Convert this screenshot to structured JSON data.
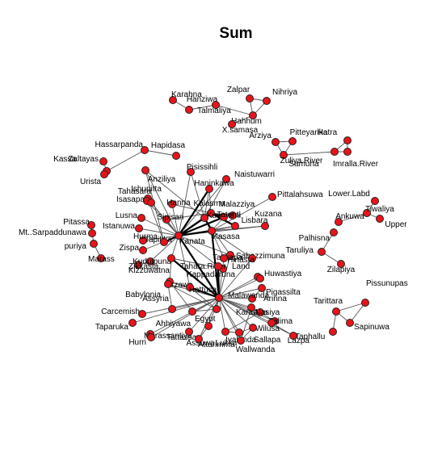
{
  "title": "Sum",
  "colors": {
    "node_fill": "#e8141b",
    "node_stroke": "#222222",
    "edge": "#555555",
    "edge_strong": "#000000"
  },
  "nodes": [
    {
      "id": "Karahna",
      "label": "Karahna"
    },
    {
      "id": "Hanziwa",
      "label": "Hanziwa"
    },
    {
      "id": "Talmaliya",
      "label": "Talmaliya"
    },
    {
      "id": "Zalpar",
      "label": "Zalpar"
    },
    {
      "id": "Nihriya",
      "label": "Nihriya"
    },
    {
      "id": "Hahhum",
      "label": "Hahhum"
    },
    {
      "id": "X.samasa",
      "label": "X.samasa"
    },
    {
      "id": "Arziya",
      "label": "Arziya"
    },
    {
      "id": "Pitteyarika",
      "label": "Pitteyarika"
    },
    {
      "id": "Hatra",
      "label": "Hatra"
    },
    {
      "id": "Zuliya.River",
      "label": "Zuliya.River"
    },
    {
      "id": "Samuha",
      "label": "Samuha"
    },
    {
      "id": "Imrala.River",
      "label": "Imralla.River"
    },
    {
      "id": "Hassarpanda",
      "label": "Hassarpanda"
    },
    {
      "id": "Hapidasa",
      "label": "Hapidasa"
    },
    {
      "id": "Kassa",
      "label": "Kassa"
    },
    {
      "id": "Zaltayas",
      "label": "Zaltayas"
    },
    {
      "id": "Urista",
      "label": "Urista"
    },
    {
      "id": "Anziliya",
      "label": "Anziliya"
    },
    {
      "id": "Pisissihli",
      "label": "Pisissihli"
    },
    {
      "id": "Naistuwarri",
      "label": "Naistuwarri"
    },
    {
      "id": "Ishupitta",
      "label": "Ishupitta"
    },
    {
      "id": "Haninkawa",
      "label": "Haninkawa"
    },
    {
      "id": "Tahasara",
      "label": "Tahasara"
    },
    {
      "id": "Isasapa",
      "label": "Isasapa"
    },
    {
      "id": "Hanna",
      "label": "Hanna"
    },
    {
      "id": "Kalasma",
      "label": "Kalasma"
    },
    {
      "id": "Malazziya",
      "label": "Malazziya"
    },
    {
      "id": "Pittalahsuwa",
      "label": "Pittalahsuwa"
    },
    {
      "id": "Lower.Land",
      "label": "Lower.Labd"
    },
    {
      "id": "Sipisari",
      "label": "Sipisari"
    },
    {
      "id": "Kummeni",
      "label": "Kummeni"
    },
    {
      "id": "Tatenti",
      "label": "Tatenti"
    },
    {
      "id": "Lisbara",
      "label": "Lisbara"
    },
    {
      "id": "Kuzana",
      "label": "Kuzana"
    },
    {
      "id": "Tiwaliya",
      "label": "Tiwaliya"
    },
    {
      "id": "Ankuwa",
      "label": "Ankuwa"
    },
    {
      "id": "Upper",
      "label": "Upper"
    },
    {
      "id": "Pitassa",
      "label": "Pitassa"
    },
    {
      "id": "Lusna",
      "label": "Lusna"
    },
    {
      "id": "Istanuwa",
      "label": "Istanuwa"
    },
    {
      "id": "Mt.Sarpaduwana",
      "label": "Mt..Sarpaddunawa"
    },
    {
      "id": "Tapikka",
      "label": "Tapikka"
    },
    {
      "id": "Kasasa",
      "label": "Kasasa"
    },
    {
      "id": "Palhisna",
      "label": "Palhisna"
    },
    {
      "id": "Puriya",
      "label": "puriya"
    },
    {
      "id": "Zispa",
      "label": "Zispa"
    },
    {
      "id": "Hurma",
      "label": "Hurma"
    },
    {
      "id": "Nerik",
      "label": "Kanata"
    },
    {
      "id": "Taruliya",
      "label": "Taruliya"
    },
    {
      "id": "Maraas",
      "label": "Marass"
    },
    {
      "id": "Zikkasta",
      "label": "Zikkasta"
    },
    {
      "id": "Kuduipuna",
      "label": "Kuduipuna"
    },
    {
      "id": "Zilapiya",
      "label": "Zilapiya"
    },
    {
      "id": "Takkapa",
      "label": "Takkapa"
    },
    {
      "id": "Sabazzimuna",
      "label": "Sabazzimuna"
    },
    {
      "id": "Kizzuwatna",
      "label": "Kizzuwatna"
    },
    {
      "id": "Tahara",
      "label": "Tahara.River"
    },
    {
      "id": "Land",
      "label": "Land"
    },
    {
      "id": "Hinasta",
      "label": "Hinasta"
    },
    {
      "id": "Kappadaruna",
      "label": "Kappadaruna"
    },
    {
      "id": "Huwasi",
      "label": "Huwastiya"
    },
    {
      "id": "Arzawa",
      "label": "Arzawa"
    },
    {
      "id": "Babylonia",
      "label": "Babylonia"
    },
    {
      "id": "Hattusa",
      "label": "Hattusa"
    },
    {
      "id": "Pigassilta",
      "label": "Pigassilta"
    },
    {
      "id": "Arinna",
      "label": "Arinna"
    },
    {
      "id": "Assyria",
      "label": "Assyria"
    },
    {
      "id": "Carcemish",
      "label": "Carcemish"
    },
    {
      "id": "Malawanda",
      "label": "Malawanda"
    },
    {
      "id": "Tarittara",
      "label": "Tarittara"
    },
    {
      "id": "Pissunupassa",
      "label": "Pissunupas"
    },
    {
      "id": "Taparuka",
      "label": "Taparuka"
    },
    {
      "id": "Ahhiyawa",
      "label": "Ahhiyawa"
    },
    {
      "id": "Egypt",
      "label": "Egypt"
    },
    {
      "id": "Kannuwara",
      "label": "Karauwa"
    },
    {
      "id": "Alasiya",
      "label": "Alasiya"
    },
    {
      "id": "Zalma",
      "label": "Zalima"
    },
    {
      "id": "Sapinuwa",
      "label": "Sapinuwa"
    },
    {
      "id": "Wiluxa",
      "label": "Wilusa"
    },
    {
      "id": "Massantiya",
      "label": "Marassantiya"
    },
    {
      "id": "Hurri",
      "label": "Hurri"
    },
    {
      "id": "Tattassa",
      "label": "Tattassa"
    },
    {
      "id": "Assuwa",
      "label": "Assuwa"
    },
    {
      "id": "Attarimma",
      "label": "Attarimma"
    },
    {
      "id": "Lukka",
      "label": "Lukka"
    },
    {
      "id": "Iyalanda",
      "label": "Iyalanda"
    },
    {
      "id": "Sallapa",
      "label": "Sallapa"
    },
    {
      "id": "Wallwanda",
      "label": "Wallwanda"
    },
    {
      "id": "Taphallu",
      "label": "Taphallu"
    },
    {
      "id": "Lazpa",
      "label": "Lazpa"
    }
  ],
  "edges": [
    [
      "Karahna",
      "Hanziwa"
    ],
    [
      "Hanziwa",
      "Talmaliya"
    ],
    [
      "Talmaliya",
      "Hahhum"
    ],
    [
      "Hahhum",
      "X.samasa"
    ],
    [
      "Zalpar",
      "Nihriya"
    ],
    [
      "Nihriya",
      "Hahhum"
    ],
    [
      "Zalpar",
      "Hahhum"
    ],
    [
      "Arziya",
      "Pitteyarika"
    ],
    [
      "Arziya",
      "Zuliya.River"
    ],
    [
      "Pitteyarika",
      "Zuliya.River"
    ],
    [
      "Zuliya.River",
      "Samuha"
    ],
    [
      "Samuha",
      "Hatra"
    ],
    [
      "Hatra",
      "Imrala.River"
    ],
    [
      "Samuha",
      "Imrala.River"
    ],
    [
      "Hassarpanda",
      "Hapidasa"
    ],
    [
      "Zaltayas",
      "Hassarpanda"
    ],
    [
      "Kassa",
      "Zaltayas"
    ],
    [
      "Zaltayas",
      "Urista"
    ],
    [
      "Tiwaliya",
      "Lower.Land"
    ],
    [
      "Tiwaliya",
      "Upper"
    ],
    [
      "Ankuwa",
      "Tiwaliya"
    ],
    [
      "Pitassa",
      "Mt.Sarpaduwana"
    ],
    [
      "Mt.Sarpaduwana",
      "Puriya"
    ],
    [
      "Puriya",
      "Maraas"
    ],
    [
      "Palhisna",
      "Taruliya"
    ],
    [
      "Taruliya",
      "Zilapiya"
    ],
    [
      "Tarittara",
      "Pissunupassa"
    ],
    [
      "Tarittara",
      "Sapinuwa"
    ],
    [
      "Sapinuwa",
      "Pissunupassa"
    ],
    [
      "Tarittara",
      "Taphallu"
    ],
    [
      "Anziliya",
      "Nerik"
    ],
    [
      "Pisissihli",
      "Nerik"
    ],
    [
      "Naistuwarri",
      "Nerik"
    ],
    [
      "Haninkawa",
      "Nerik"
    ],
    [
      "Ishupitta",
      "Nerik"
    ],
    [
      "Tahasara",
      "Nerik"
    ],
    [
      "Isasapa",
      "Nerik"
    ],
    [
      "Hanna",
      "Nerik"
    ],
    [
      "Kalasma",
      "Nerik"
    ],
    [
      "Malazziya",
      "Kalasma"
    ],
    [
      "Pittalahsuwa",
      "Kasasa"
    ],
    [
      "Sipisari",
      "Nerik"
    ],
    [
      "Kummeni",
      "Nerik"
    ],
    [
      "Tatenti",
      "Nerik"
    ],
    [
      "Lisbara",
      "Nerik"
    ],
    [
      "Kuzana",
      "Nerik"
    ],
    [
      "Lusna",
      "Nerik"
    ],
    [
      "Istanuwa",
      "Nerik"
    ],
    [
      "Tapikka",
      "Nerik"
    ],
    [
      "Zispa",
      "Nerik"
    ],
    [
      "Hurma",
      "Nerik"
    ],
    [
      "Kuduipuna",
      "Nerik"
    ],
    [
      "Zikkasta",
      "Kuduipuna"
    ],
    [
      "Kasasa",
      "Nerik"
    ],
    [
      "Takkapa",
      "Nerik"
    ],
    [
      "Anziliya",
      "Hurma"
    ],
    [
      "Anziliya",
      "Kummeni"
    ],
    [
      "Haninkawa",
      "Kummeni"
    ],
    [
      "Haninkawa",
      "Kalasma"
    ],
    [
      "Pisissihli",
      "Kummeni"
    ],
    [
      "Naistuwarri",
      "Kummeni"
    ],
    [
      "Kummeni",
      "Kasasa"
    ],
    [
      "Kummeni",
      "Takkapa"
    ],
    [
      "Lisbara",
      "Kasasa"
    ],
    [
      "Tatenti",
      "Kasasa"
    ],
    [
      "Kuzana",
      "Kasasa"
    ],
    [
      "Malazziya",
      "Tatenti"
    ],
    [
      "Sipisari",
      "Kalasma"
    ],
    [
      "Hanna",
      "Kalasma"
    ],
    [
      "Ishupitta",
      "Hurma"
    ],
    [
      "Nerik",
      "Malawanda"
    ],
    [
      "Nerik",
      "Hattusa"
    ],
    [
      "Nerik",
      "Kizzuwatna"
    ],
    [
      "Nerik",
      "Land"
    ],
    [
      "Kasasa",
      "Malawanda"
    ],
    [
      "Takkapa",
      "Malawanda"
    ],
    [
      "Sabazzimuna",
      "Malawanda"
    ],
    [
      "Hinasta",
      "Malawanda"
    ],
    [
      "Land",
      "Malawanda"
    ],
    [
      "Tahara",
      "Land"
    ],
    [
      "Kappadaruna",
      "Malawanda"
    ],
    [
      "Huwasi",
      "Malawanda"
    ],
    [
      "Kizzuwatna",
      "Malawanda"
    ],
    [
      "Kizzuwatna",
      "Arzawa"
    ],
    [
      "Arzawa",
      "Malawanda"
    ],
    [
      "Babylonia",
      "Malawanda"
    ],
    [
      "Hattusa",
      "Malawanda"
    ],
    [
      "Pigassilta",
      "Malawanda"
    ],
    [
      "Arinna",
      "Malawanda"
    ],
    [
      "Assyria",
      "Malawanda"
    ],
    [
      "Carcemish",
      "Malawanda"
    ],
    [
      "Taparuka",
      "Malawanda"
    ],
    [
      "Ahhiyawa",
      "Malawanda"
    ],
    [
      "Egypt",
      "Malawanda"
    ],
    [
      "Kannuwara",
      "Malawanda"
    ],
    [
      "Alasiya",
      "Malawanda"
    ],
    [
      "Zalma",
      "Malawanda"
    ],
    [
      "Wiluxa",
      "Malawanda"
    ],
    [
      "Massantiya",
      "Malawanda"
    ],
    [
      "Hurri",
      "Malawanda"
    ],
    [
      "Tattassa",
      "Malawanda"
    ],
    [
      "Assuwa",
      "Malawanda"
    ],
    [
      "Attarimma",
      "Malawanda"
    ],
    [
      "Lukka",
      "Malawanda"
    ],
    [
      "Iyalanda",
      "Malawanda"
    ],
    [
      "Sallapa",
      "Malawanda"
    ],
    [
      "Wallwanda",
      "Malawanda"
    ],
    [
      "Lazpa",
      "Malawanda"
    ],
    [
      "Babylonia",
      "Assyria"
    ],
    [
      "Babylonia",
      "Egypt"
    ],
    [
      "Arzawa",
      "Ahhiyawa"
    ],
    [
      "Arzawa",
      "Hattusa"
    ],
    [
      "Hattusa",
      "Egypt"
    ],
    [
      "Kannuwara",
      "Zalma"
    ],
    [
      "Alasiya",
      "Lukka"
    ],
    [
      "Lukka",
      "Iyalanda"
    ],
    [
      "Wiluxa",
      "Lazpa"
    ],
    [
      "Sallapa",
      "Wallwanda"
    ],
    [
      "Attarimma",
      "Assuwa"
    ],
    [
      "Egypt",
      "Ahhiyawa"
    ],
    [
      "Kannuwara",
      "Wallwanda"
    ],
    [
      "Iyalanda",
      "Sallapa"
    ],
    [
      "Kasasa",
      "Sabazzimuna"
    ],
    [
      "Hinasta",
      "Kasasa"
    ],
    [
      "Arinna",
      "Pigassilta"
    ],
    [
      "Kannuwara",
      "Alasiya"
    ],
    [
      "Zalma",
      "Wiluxa"
    ],
    [
      "Tahara",
      "Kizzuwatna"
    ]
  ],
  "strong_edges": [
    [
      "Nerik",
      "Kalasma"
    ],
    [
      "Nerik",
      "Kummeni"
    ],
    [
      "Nerik",
      "Kasasa"
    ],
    [
      "Nerik",
      "Tatenti"
    ],
    [
      "Nerik",
      "Malawanda"
    ],
    [
      "Kummeni",
      "Kasasa"
    ],
    [
      "Kalasma",
      "Lisbara"
    ],
    [
      "Nerik",
      "Haninkawa"
    ],
    [
      "Hattusa",
      "Malawanda"
    ],
    [
      "Land",
      "Malawanda"
    ],
    [
      "Kizzuwatna",
      "Malawanda"
    ],
    [
      "Nerik",
      "Hurma"
    ],
    [
      "Kalasma",
      "Tatenti"
    ],
    [
      "Kasasa",
      "Malawanda"
    ]
  ]
}
